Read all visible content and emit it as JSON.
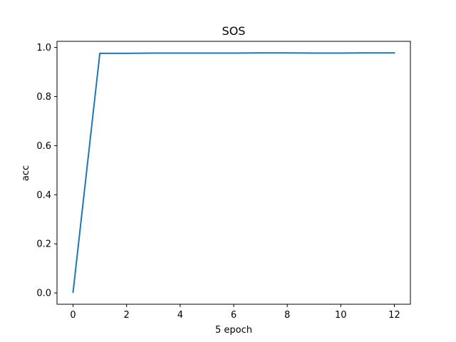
{
  "chart_data": {
    "type": "line",
    "title": "SOS",
    "xlabel": "5 epoch",
    "ylabel": "acc",
    "xlim": [
      -0.6,
      12.6
    ],
    "ylim": [
      -0.046,
      1.025
    ],
    "xticks": [
      0,
      2,
      4,
      6,
      8,
      10,
      12
    ],
    "xtick_labels": [
      "0",
      "2",
      "4",
      "6",
      "8",
      "10",
      "12"
    ],
    "yticks": [
      0.0,
      0.2,
      0.4,
      0.6,
      0.8,
      1.0
    ],
    "ytick_labels": [
      "0.0",
      "0.2",
      "0.4",
      "0.6",
      "0.8",
      "1.0"
    ],
    "grid": false,
    "series": [
      {
        "color": "#1f77b4",
        "x": [
          0,
          1,
          2,
          3,
          4,
          5,
          6,
          7,
          8,
          9,
          10,
          11,
          12
        ],
        "y": [
          0.003,
          0.976,
          0.976,
          0.977,
          0.977,
          0.977,
          0.977,
          0.978,
          0.978,
          0.977,
          0.977,
          0.978,
          0.978
        ]
      }
    ]
  }
}
